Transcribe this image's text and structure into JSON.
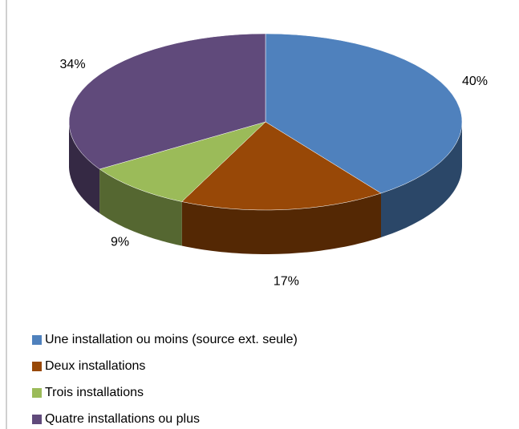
{
  "chart_data": {
    "type": "pie",
    "categories": [
      "Une installation ou moins (source ext. seule)",
      "Deux installations",
      "Trois installations",
      "Quatre installations ou plus"
    ],
    "values": [
      40,
      17,
      9,
      34
    ],
    "value_labels": [
      "40%",
      "17%",
      "9%",
      "34%"
    ],
    "colors": [
      "#4f81bd",
      "#984807",
      "#9bbb59",
      "#604a7b"
    ],
    "legend": "bottom"
  }
}
